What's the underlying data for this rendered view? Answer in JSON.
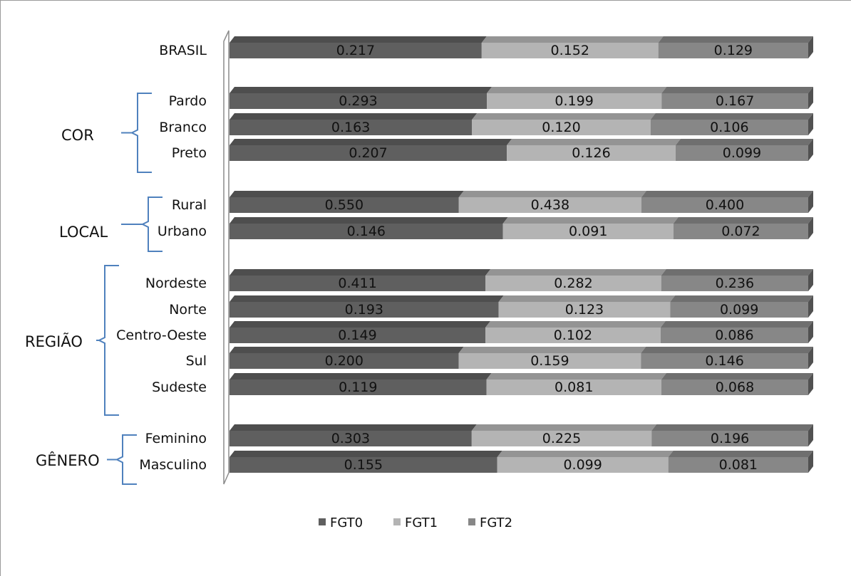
{
  "chart_data": {
    "type": "bar",
    "stacked": true,
    "orientation": "horizontal",
    "style": "3d",
    "categories": [
      "BRASIL",
      "Pardo",
      "Branco",
      "Preto",
      "Rural",
      "Urbano",
      "Nordeste",
      "Norte",
      "Centro-Oeste",
      "Sul",
      "Sudeste",
      "Feminino",
      "Masculino"
    ],
    "groups": [
      {
        "label": "COR",
        "members": [
          "Pardo",
          "Branco",
          "Preto"
        ]
      },
      {
        "label": "LOCAL",
        "members": [
          "Rural",
          "Urbano"
        ]
      },
      {
        "label": "REGIÃO",
        "members": [
          "Nordeste",
          "Norte",
          "Centro-Oeste",
          "Sul",
          "Sudeste"
        ]
      },
      {
        "label": "GÊNERO",
        "members": [
          "Feminino",
          "Masculino"
        ]
      }
    ],
    "series": [
      {
        "name": "FGT0",
        "color": "#5f5f5f",
        "values": [
          "0.217",
          "0.293",
          "0.163",
          "0.207",
          "0.550",
          "0.146",
          "0.411",
          "0.193",
          "0.149",
          "0.200",
          "0.119",
          "0.303",
          "0.155"
        ]
      },
      {
        "name": "FGT1",
        "color": "#b4b4b4",
        "values": [
          "0.152",
          "0.199",
          "0.120",
          "0.126",
          "0.438",
          "0.091",
          "0.282",
          "0.123",
          "0.102",
          "0.159",
          "0.081",
          "0.225",
          "0.099"
        ]
      },
      {
        "name": "FGT2",
        "color": "#878787",
        "values": [
          "0.129",
          "0.167",
          "0.106",
          "0.099",
          "0.400",
          "0.072",
          "0.236",
          "0.099",
          "0.086",
          "0.146",
          "0.068",
          "0.196",
          "0.081"
        ]
      }
    ],
    "normalized": true,
    "legend_position": "bottom",
    "grid": false,
    "bracket_color": "#4f81bd"
  }
}
